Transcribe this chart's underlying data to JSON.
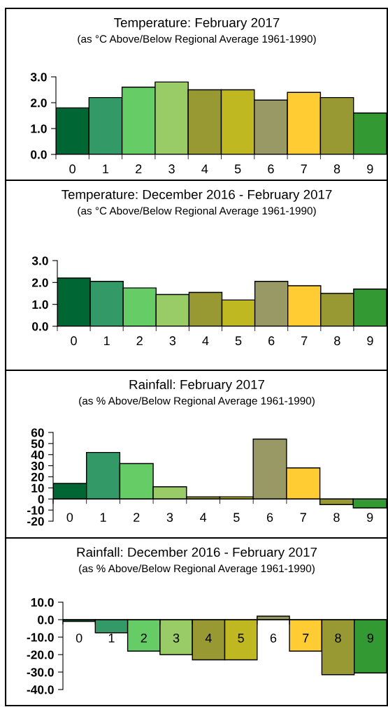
{
  "chart_data": [
    {
      "type": "bar",
      "title": "Temperature: February 2017",
      "subtitle": "(as °C Above/Below Regional Average 1961-1990)",
      "categories": [
        "0",
        "1",
        "2",
        "3",
        "4",
        "5",
        "6",
        "7",
        "8",
        "9"
      ],
      "values": [
        1.8,
        2.2,
        2.6,
        2.8,
        2.5,
        2.5,
        2.1,
        2.4,
        2.2,
        1.6
      ],
      "colors": [
        "#006633",
        "#339966",
        "#66cc66",
        "#99cc66",
        "#999933",
        "#c0b820",
        "#999966",
        "#ffcc33",
        "#999933",
        "#339933"
      ],
      "ylim": [
        0,
        3
      ],
      "yticks": [
        {
          "value": 0,
          "label": "0.0"
        },
        {
          "value": 1,
          "label": "1.0"
        },
        {
          "value": 2,
          "label": "2.0"
        },
        {
          "value": 3,
          "label": "3.0"
        }
      ]
    },
    {
      "type": "bar",
      "title": "Temperature: December 2016 - February 2017",
      "subtitle": "(as °C Above/Below Regional Average 1961-1990)",
      "categories": [
        "0",
        "1",
        "2",
        "3",
        "4",
        "5",
        "6",
        "7",
        "8",
        "9"
      ],
      "values": [
        2.2,
        2.05,
        1.75,
        1.45,
        1.55,
        1.2,
        2.05,
        1.85,
        1.5,
        1.7
      ],
      "colors": [
        "#006633",
        "#339966",
        "#66cc66",
        "#99cc66",
        "#999933",
        "#c0b820",
        "#999966",
        "#ffcc33",
        "#999933",
        "#339933"
      ],
      "ylim": [
        0,
        3
      ],
      "yticks": [
        {
          "value": 0,
          "label": "0.0"
        },
        {
          "value": 1,
          "label": "1.0"
        },
        {
          "value": 2,
          "label": "2.0"
        },
        {
          "value": 3,
          "label": "3.0"
        }
      ]
    },
    {
      "type": "bar",
      "title": "Rainfall: February 2017",
      "subtitle": "(as % Above/Below Regional Average 1961-1990)",
      "categories": [
        "0",
        "1",
        "2",
        "3",
        "4",
        "5",
        "6",
        "7",
        "8",
        "9"
      ],
      "values": [
        14,
        42,
        32,
        11,
        2,
        2,
        54,
        28,
        -5,
        -8
      ],
      "colors": [
        "#006633",
        "#339966",
        "#66cc66",
        "#99cc66",
        "#999933",
        "#c0b820",
        "#999966",
        "#ffcc33",
        "#999933",
        "#339933"
      ],
      "ylim": [
        -20,
        60
      ],
      "yticks": [
        -20,
        -10,
        0,
        10,
        20,
        30,
        40,
        50,
        60
      ]
    },
    {
      "type": "bar",
      "title": "Rainfall: December 2016 - February 2017",
      "subtitle": "(as % Above/Below Regional Average 1961-1990)",
      "categories": [
        "0",
        "1",
        "2",
        "3",
        "4",
        "5",
        "6",
        "7",
        "8",
        "9"
      ],
      "values": [
        -1,
        -7.5,
        -18,
        -20,
        -23,
        -23,
        2,
        -18,
        -31.5,
        -30.5
      ],
      "colors": [
        "#006633",
        "#339966",
        "#66cc66",
        "#99cc66",
        "#999933",
        "#c0b820",
        "#999966",
        "#ffcc33",
        "#999933",
        "#339933"
      ],
      "ylim": [
        -40,
        10
      ],
      "yticks": [
        {
          "value": -40,
          "label": "-40.0"
        },
        {
          "value": -30,
          "label": "-30.0"
        },
        {
          "value": -20,
          "label": "-20.0"
        },
        {
          "value": -10,
          "label": "-10.0"
        },
        {
          "value": 0,
          "label": "0.0"
        },
        {
          "value": 10,
          "label": "10.0"
        }
      ]
    }
  ]
}
